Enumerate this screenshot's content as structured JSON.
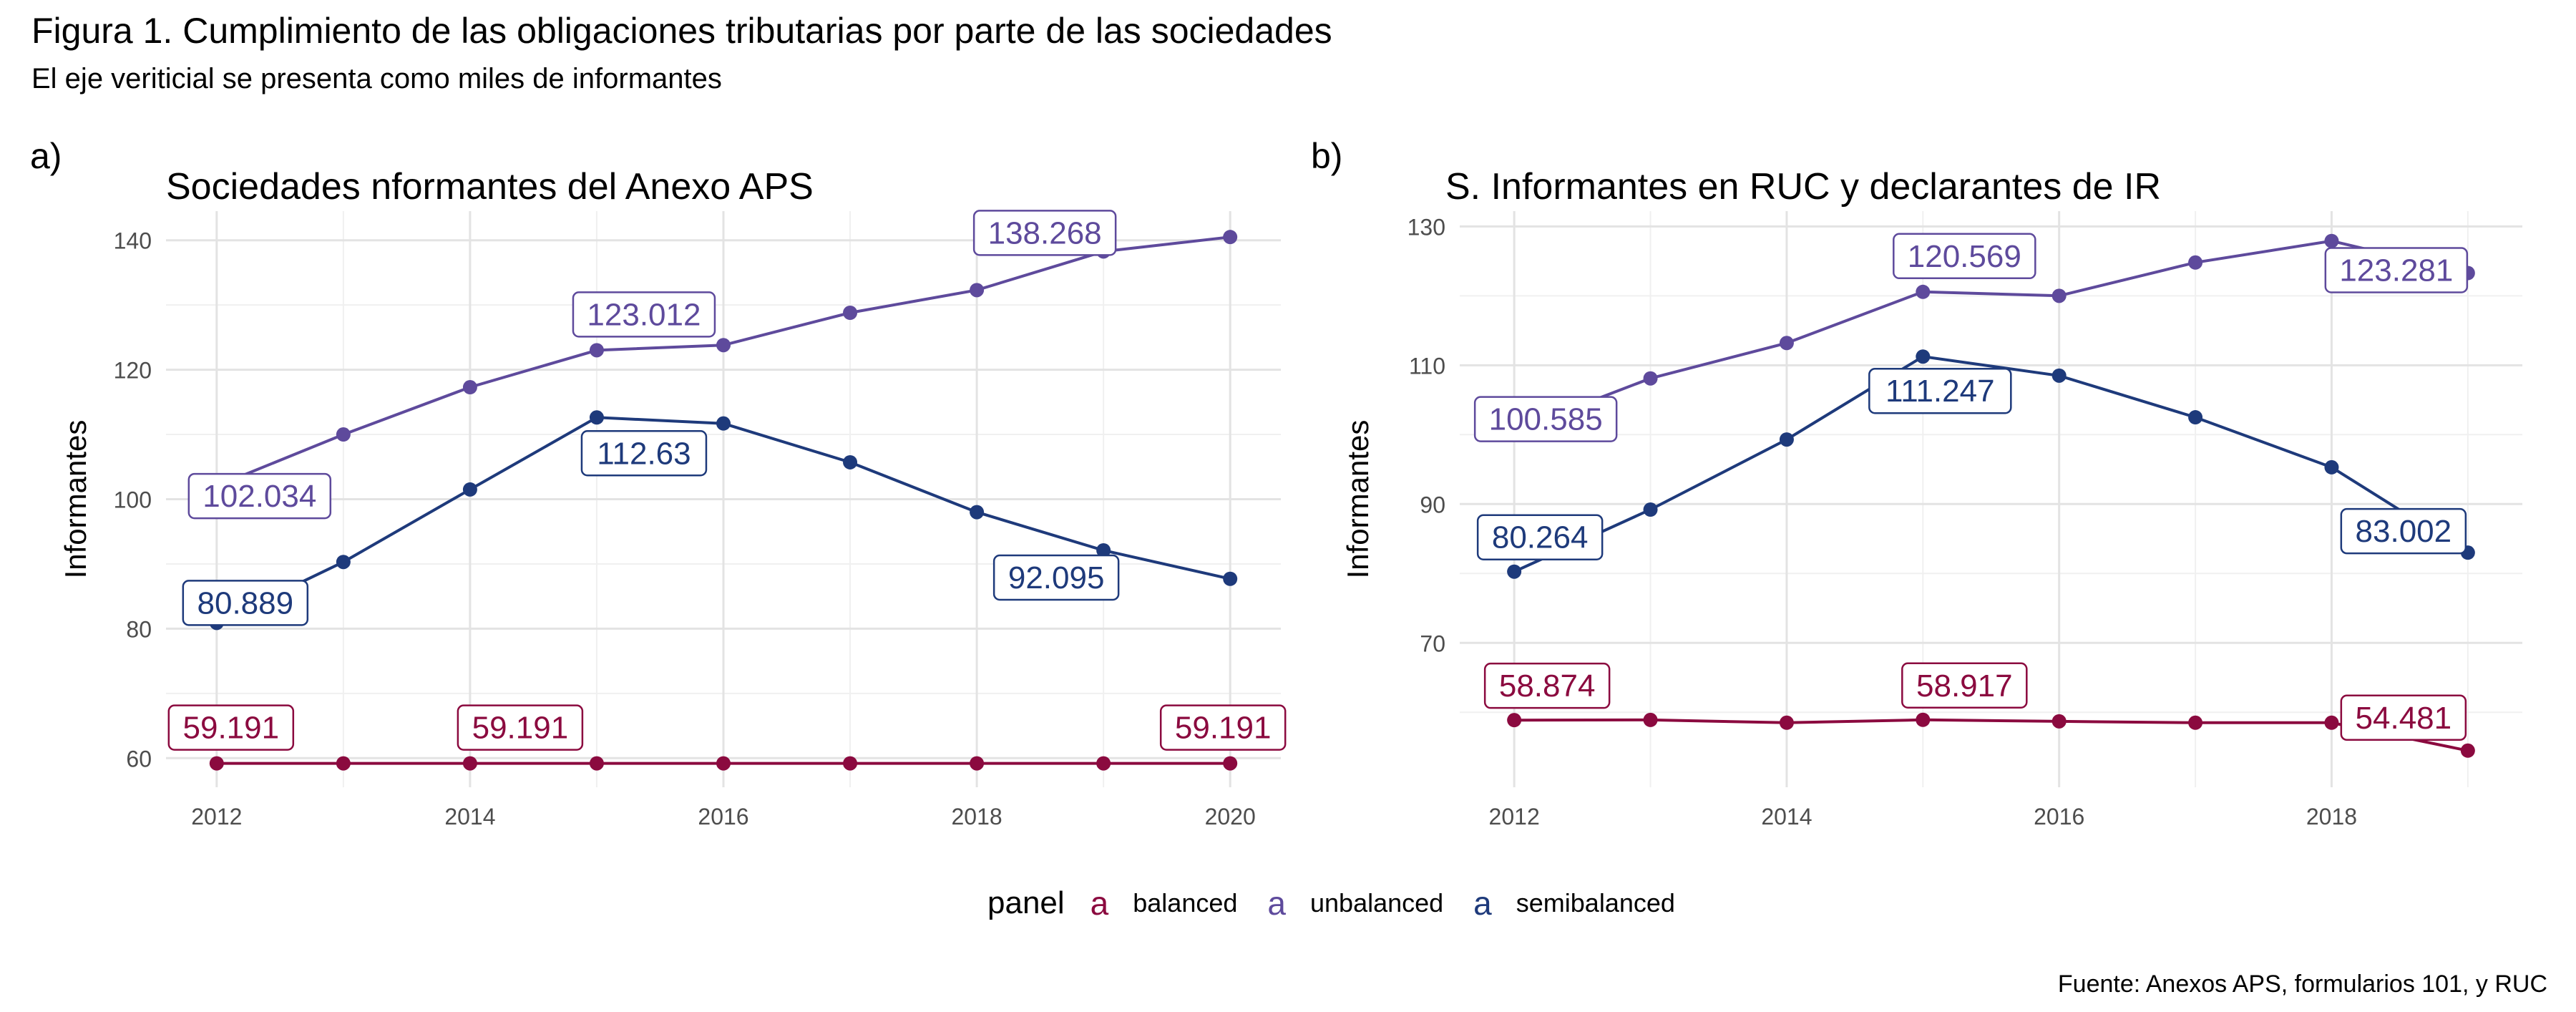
{
  "title": "Figura 1. Cumplimiento de las obligaciones tributarias por parte de las sociedades",
  "subtitle": "El eje veriticial se presenta como miles de informantes",
  "caption": "Fuente: Anexos APS, formularios 101, y RUC",
  "legend": {
    "title": "panel",
    "key_glyph": "a",
    "items": [
      {
        "label": "balanced",
        "color": "#8B0A3F"
      },
      {
        "label": "unbalanced",
        "color": "#5E4A9C"
      },
      {
        "label": "semibalanced",
        "color": "#1E3A7B"
      }
    ]
  },
  "chart_data": [
    {
      "type": "line",
      "tag": "a)",
      "title": "Sociedades nformantes del Anexo APS",
      "ylabel": "Informantes",
      "xlabel": "",
      "x": [
        2012,
        2013,
        2014,
        2015,
        2016,
        2017,
        2018,
        2019,
        2020
      ],
      "x_ticks": [
        2012,
        2014,
        2016,
        2018,
        2020
      ],
      "y_ticks": [
        60,
        80,
        100,
        120,
        140
      ],
      "xlim": [
        2011.6,
        2020.4
      ],
      "ylim": [
        55.5,
        144.5
      ],
      "grid": true,
      "series": [
        {
          "name": "balanced",
          "color": "#8B0A3F",
          "values": [
            59.191,
            59.191,
            59.191,
            59.191,
            59.191,
            59.191,
            59.191,
            59.191,
            59.191
          ],
          "labels": [
            {
              "x": 2012,
              "text": "59.191"
            },
            {
              "x": 2014,
              "text": "59.191"
            },
            {
              "x": 2020,
              "text": "59.191"
            }
          ]
        },
        {
          "name": "unbalanced",
          "color": "#5E4A9C",
          "values": [
            102.034,
            110,
            117.3,
            123.012,
            123.8,
            128.8,
            132.3,
            138.268,
            140.5
          ],
          "labels": [
            {
              "x": 2012,
              "text": "102.034"
            },
            {
              "x": 2015,
              "text": "123.012"
            },
            {
              "x": 2019,
              "text": "138.268"
            }
          ]
        },
        {
          "name": "semibalanced",
          "color": "#1E3A7B",
          "values": [
            80.889,
            90.3,
            101.5,
            112.63,
            111.7,
            105.7,
            98,
            92.095,
            87.7
          ],
          "labels": [
            {
              "x": 2012,
              "text": "80.889"
            },
            {
              "x": 2015,
              "text": "112.63"
            },
            {
              "x": 2019,
              "text": "92.095"
            }
          ]
        }
      ]
    },
    {
      "type": "line",
      "tag": "b)",
      "title": "S. Informantes en RUC y declarantes de IR",
      "ylabel": "Informantes",
      "xlabel": "",
      "x": [
        2012,
        2013,
        2014,
        2015,
        2016,
        2017,
        2018,
        2019
      ],
      "x_ticks": [
        2012,
        2014,
        2016,
        2018
      ],
      "y_ticks": [
        70,
        90,
        110,
        130
      ],
      "xlim": [
        2011.6,
        2019.4
      ],
      "ylim": [
        49.2,
        132.2
      ],
      "grid": true,
      "series": [
        {
          "name": "balanced",
          "color": "#8B0A3F",
          "values": [
            58.874,
            58.9,
            58.5,
            58.917,
            58.7,
            58.5,
            58.5,
            54.481
          ],
          "labels": [
            {
              "x": 2012,
              "text": "58.874"
            },
            {
              "x": 2015,
              "text": "58.917"
            },
            {
              "x": 2019,
              "text": "54.481"
            }
          ]
        },
        {
          "name": "unbalanced",
          "color": "#5E4A9C",
          "values": [
            100.585,
            108.1,
            113.2,
            120.569,
            120,
            124.8,
            127.9,
            123.281
          ],
          "labels": [
            {
              "x": 2012,
              "text": "100.585"
            },
            {
              "x": 2015,
              "text": "120.569"
            },
            {
              "x": 2019,
              "text": "123.281"
            }
          ]
        },
        {
          "name": "semibalanced",
          "color": "#1E3A7B",
          "values": [
            80.264,
            89.2,
            99.3,
            111.247,
            108.5,
            102.5,
            95.3,
            83.002
          ],
          "labels": [
            {
              "x": 2012,
              "text": "80.264"
            },
            {
              "x": 2015,
              "text": "111.247"
            },
            {
              "x": 2019,
              "text": "83.002"
            }
          ]
        }
      ]
    }
  ]
}
